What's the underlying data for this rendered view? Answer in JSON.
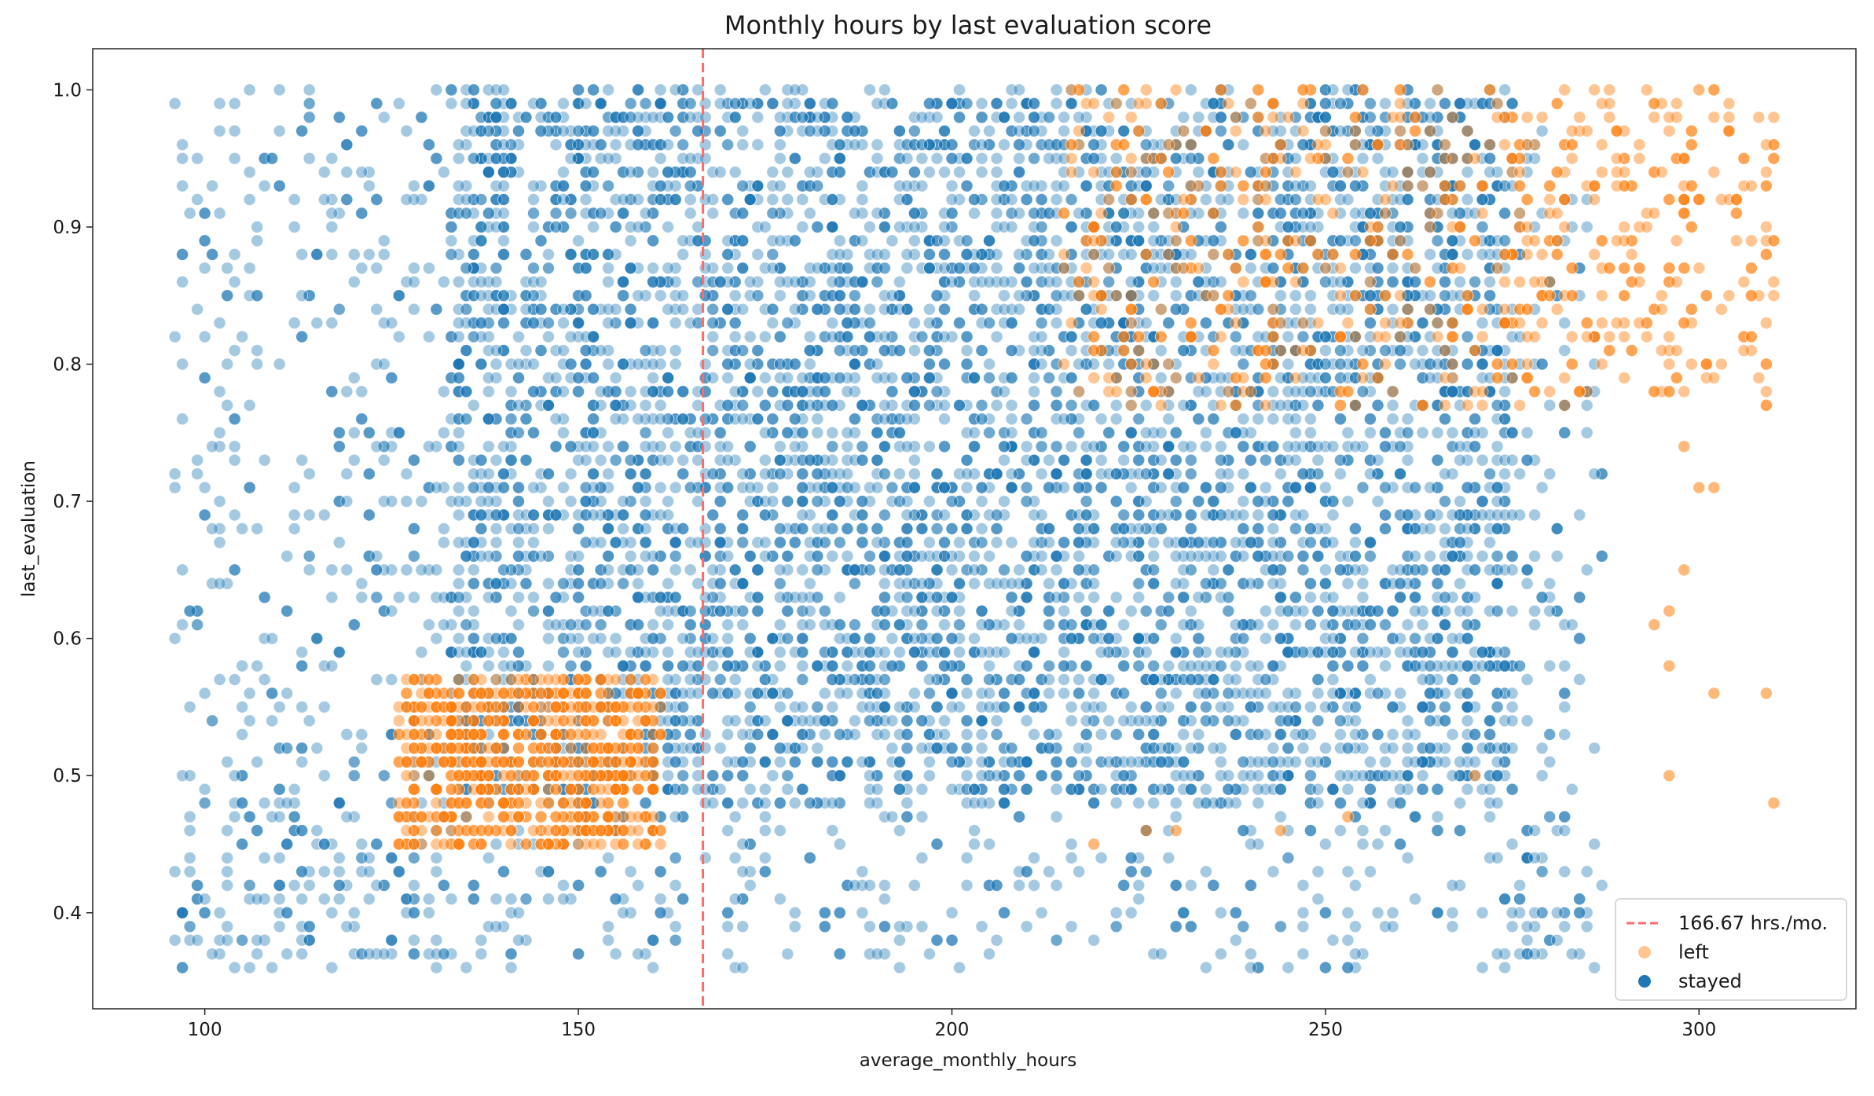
{
  "chart_data": {
    "type": "scatter",
    "title": "Monthly hours by last evaluation score",
    "xlabel": "average_monthly_hours",
    "ylabel": "last_evaluation",
    "xlim": [
      85,
      321
    ],
    "ylim": [
      0.33,
      1.03
    ],
    "x_ticks": [
      100,
      150,
      200,
      250,
      300
    ],
    "y_ticks": [
      0.4,
      0.5,
      0.6,
      0.7,
      0.8,
      0.9,
      1.0
    ],
    "x_tick_labels": [
      "100",
      "150",
      "200",
      "250",
      "300"
    ],
    "y_tick_labels": [
      "0.4",
      "0.5",
      "0.6",
      "0.7",
      "0.8",
      "0.9",
      "1.0"
    ],
    "reference_line": {
      "x": 166.67,
      "label": "166.67 hrs./mo.",
      "style": "dashed",
      "color": "#ff6b6b"
    },
    "legend": {
      "placement": "lower-right",
      "entries": [
        "166.67 hrs./mo.",
        "left",
        "stayed"
      ]
    },
    "series": [
      {
        "name": "stayed",
        "color": "#1f77b4",
        "x_range": [
          96,
          287
        ],
        "y_range": [
          0.36,
          1.0
        ],
        "dense_region": {
          "x": [
            133,
            275
          ],
          "y": [
            0.48,
            1.0
          ]
        },
        "sparse_regions": [
          {
            "x": [
              96,
              133
            ],
            "y": [
              0.36,
              1.0
            ]
          },
          {
            "x": [
              96,
              287
            ],
            "y": [
              0.36,
              0.48
            ]
          },
          {
            "x": [
              275,
              287
            ],
            "y": [
              0.36,
              0.98
            ]
          }
        ]
      },
      {
        "name": "left",
        "color": "#ff7f0e",
        "clusters": [
          {
            "x": [
              126,
              161
            ],
            "y": [
              0.45,
              0.57
            ]
          },
          {
            "x": [
              214,
              277
            ],
            "y": [
              0.77,
              1.0
            ]
          },
          {
            "x": [
              276,
              310
            ],
            "y": [
              0.77,
              1.0
            ]
          }
        ],
        "outliers": [
          [
            298,
            0.74
          ],
          [
            300,
            0.71
          ],
          [
            302,
            0.71
          ],
          [
            298,
            0.65
          ],
          [
            296,
            0.62
          ],
          [
            294,
            0.61
          ],
          [
            296,
            0.58
          ],
          [
            302,
            0.56
          ],
          [
            309,
            0.56
          ],
          [
            296,
            0.5
          ],
          [
            310,
            0.48
          ],
          [
            300,
            1.0
          ],
          [
            244,
            0.46
          ],
          [
            253,
            0.47
          ],
          [
            219,
            0.45
          ],
          [
            230,
            0.46
          ],
          [
            226,
            0.46
          ],
          [
            270,
            0.5
          ]
        ]
      }
    ],
    "colors": {
      "stayed": "#1f77b4",
      "left": "#ff7f0e",
      "reference": "#ff6b6b"
    },
    "grid": false
  }
}
